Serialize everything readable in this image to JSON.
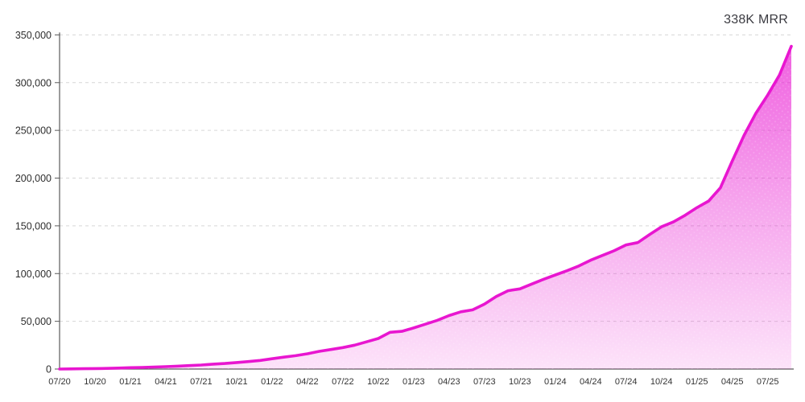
{
  "chart_data": {
    "type": "area",
    "title": "338K MRR",
    "ylabel": "",
    "xlabel": "",
    "ylim": [
      0,
      350000
    ],
    "y_ticks": [
      0,
      50000,
      100000,
      150000,
      200000,
      250000,
      300000,
      350000
    ],
    "grid": "horizontal-dashed",
    "legend": "none",
    "x_tick_labels": [
      "07/20",
      "10/20",
      "01/21",
      "04/21",
      "07/21",
      "10/21",
      "01/22",
      "04/22",
      "07/22",
      "10/22",
      "01/23",
      "04/23",
      "07/23",
      "10/23",
      "01/24",
      "04/24",
      "07/24",
      "10/24",
      "01/25",
      "04/25",
      "07/25"
    ],
    "months": [
      "07/20",
      "08/20",
      "09/20",
      "10/20",
      "11/20",
      "12/20",
      "01/21",
      "02/21",
      "03/21",
      "04/21",
      "05/21",
      "06/21",
      "07/21",
      "08/21",
      "09/21",
      "10/21",
      "11/21",
      "12/21",
      "01/22",
      "02/22",
      "03/22",
      "04/22",
      "05/22",
      "06/22",
      "07/22",
      "08/22",
      "09/22",
      "10/22",
      "11/22",
      "12/22",
      "01/23",
      "02/23",
      "03/23",
      "04/23",
      "05/23",
      "06/23",
      "07/23",
      "08/23",
      "09/23",
      "10/23",
      "11/23",
      "12/23",
      "01/24",
      "02/24",
      "03/24",
      "04/24",
      "05/24",
      "06/24",
      "07/24",
      "08/24",
      "09/24",
      "10/24",
      "11/24",
      "12/24",
      "01/25",
      "02/25",
      "03/25",
      "04/25",
      "05/25",
      "06/25",
      "07/25",
      "08/25",
      "09/25"
    ],
    "values": [
      0,
      150,
      300,
      500,
      700,
      1000,
      1400,
      1700,
      2100,
      2500,
      3000,
      3600,
      4200,
      5100,
      5800,
      6800,
      7800,
      9000,
      10800,
      12500,
      14000,
      16000,
      18500,
      20500,
      22500,
      25000,
      28500,
      32000,
      38500,
      39500,
      43000,
      47000,
      51000,
      56000,
      60000,
      62000,
      68000,
      76000,
      82000,
      84000,
      89000,
      94000,
      98500,
      103000,
      108000,
      114000,
      119000,
      124000,
      130000,
      132500,
      141000,
      149000,
      154000,
      161000,
      169000,
      176000,
      190000,
      218000,
      245000,
      268000,
      287000,
      308000,
      338000
    ],
    "final_value_label": "338K MRR",
    "colors": {
      "line": "#E816D0",
      "fill_top": "rgba(232,22,209,0.70)",
      "fill_mid": "rgba(232,22,209,0.38)",
      "fill_bottom": "rgba(232,22,209,0.12)",
      "grid": "#d6d6d6",
      "axis": "#5a5a5a",
      "tick_text": "#2e2e2e",
      "title_text": "#3b3b41",
      "background": "#ffffff"
    }
  }
}
